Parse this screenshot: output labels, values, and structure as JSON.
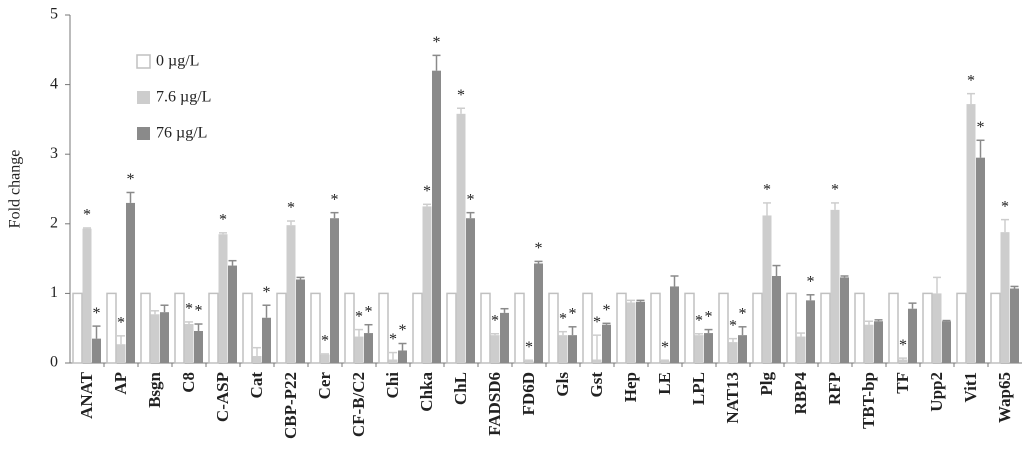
{
  "chart_data": {
    "type": "bar",
    "y_label": "Fold change",
    "categories": [
      "ANAT",
      "AP",
      "Bsgn",
      "C8",
      "C-ASP",
      "Cat",
      "CBP-P22",
      "Cer",
      "CF-B/C2",
      "Chi",
      "Chka",
      "ChL",
      "FADSD6",
      "FD6D",
      "Gls",
      "Gst",
      "Hep",
      "LE",
      "LPL",
      "NAT13",
      "Plg",
      "RBP4",
      "RFP",
      "TBT-bp",
      "TF",
      "Upp2",
      "Vit1",
      "Wap65"
    ],
    "series": [
      {
        "name": "0 µg/L",
        "color": "#ffffff",
        "stroke": "#c0c0c0",
        "values": [
          1,
          1,
          1,
          1,
          1,
          1,
          1,
          1,
          1,
          1,
          1,
          1,
          1,
          1,
          1,
          1,
          1,
          1,
          1,
          1,
          1,
          1,
          1,
          1,
          1,
          1,
          1,
          1
        ]
      },
      {
        "name": "7.6 µg/L",
        "color": "#cdcdcd",
        "values": [
          1.93,
          0.27,
          0.7,
          0.56,
          1.85,
          0.1,
          1.98,
          0.12,
          0.38,
          0.05,
          2.25,
          3.58,
          0.4,
          0.03,
          0.4,
          0.05,
          0.87,
          0.03,
          0.4,
          0.3,
          2.12,
          0.38,
          2.2,
          0.55,
          0.05,
          1.0,
          3.72,
          1.88
        ],
        "errors": [
          0.01,
          0.12,
          0.05,
          0.03,
          0.02,
          0.12,
          0.06,
          0.01,
          0.1,
          0.1,
          0.03,
          0.08,
          0.02,
          0.01,
          0.05,
          0.35,
          0.03,
          0.01,
          0.02,
          0.05,
          0.18,
          0.05,
          0.1,
          0.05,
          0.02,
          0.23,
          0.15,
          0.18
        ],
        "labels": [
          "*",
          "*",
          null,
          "*",
          "*",
          null,
          "*",
          "*",
          "*",
          "*",
          "*",
          "*",
          "*",
          "*",
          "*",
          "*",
          null,
          "*",
          "*",
          "*",
          "*",
          null,
          "*",
          null,
          "*",
          null,
          "*",
          "*"
        ]
      },
      {
        "name": "76 µg/L",
        "color": "#8a8a8a",
        "values": [
          0.35,
          2.3,
          0.73,
          0.46,
          1.4,
          0.65,
          1.2,
          2.08,
          0.43,
          0.18,
          4.2,
          2.08,
          0.72,
          1.43,
          0.4,
          0.55,
          0.88,
          1.1,
          0.43,
          0.4,
          1.25,
          0.9,
          1.23,
          0.6,
          0.78,
          0.6,
          2.95,
          1.07
        ],
        "errors": [
          0.18,
          0.15,
          0.1,
          0.1,
          0.07,
          0.18,
          0.03,
          0.08,
          0.12,
          0.1,
          0.22,
          0.08,
          0.06,
          0.03,
          0.12,
          0.02,
          0.02,
          0.15,
          0.05,
          0.12,
          0.15,
          0.08,
          0.02,
          0.02,
          0.08,
          0.01,
          0.25,
          0.03
        ],
        "labels": [
          "*",
          "*",
          null,
          "*",
          null,
          "*",
          null,
          "*",
          "*",
          "*",
          "*",
          "*",
          null,
          "*",
          "*",
          "*",
          null,
          null,
          "*",
          "*",
          null,
          "*",
          null,
          null,
          null,
          null,
          "*",
          null
        ]
      }
    ],
    "ylim": [
      0,
      5
    ],
    "yticks": [
      0,
      1,
      2,
      3,
      4,
      5
    ],
    "grid": false,
    "legend": "upper left"
  }
}
